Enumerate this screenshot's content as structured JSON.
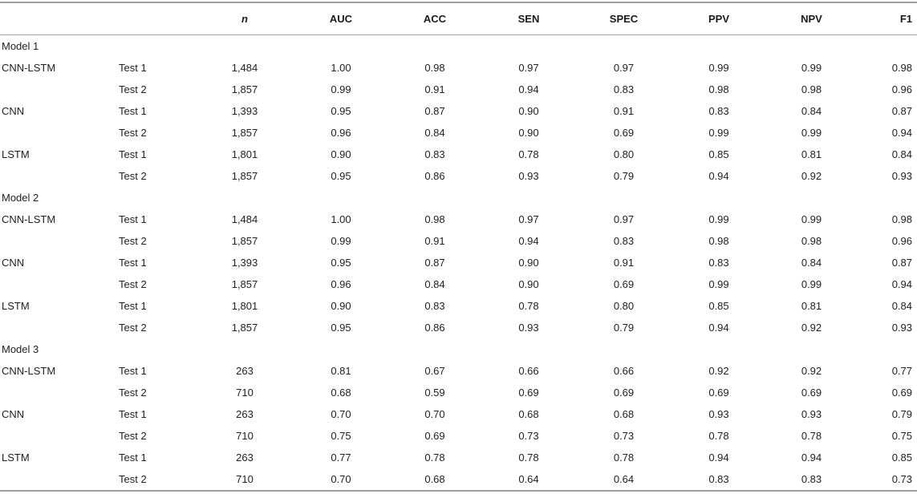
{
  "table": {
    "rule_color": "#9f9f9f",
    "text_color": "#212121",
    "columns": [
      "",
      "",
      "n",
      "AUC",
      "ACC",
      "SEN",
      "SPEC",
      "PPV",
      "NPV",
      "F1"
    ],
    "sections": [
      {
        "label": "Model 1",
        "rows": [
          [
            "CNN-LSTM",
            "Test 1",
            "1,484",
            "1.00",
            "0.98",
            "0.97",
            "0.97",
            "0.99",
            "0.99",
            "0.98"
          ],
          [
            "",
            "Test 2",
            "1,857",
            "0.99",
            "0.91",
            "0.94",
            "0.83",
            "0.98",
            "0.98",
            "0.96"
          ],
          [
            "CNN",
            "Test 1",
            "1,393",
            "0.95",
            "0.87",
            "0.90",
            "0.91",
            "0.83",
            "0.84",
            "0.87"
          ],
          [
            "",
            "Test 2",
            "1,857",
            "0.96",
            "0.84",
            "0.90",
            "0.69",
            "0.99",
            "0.99",
            "0.94"
          ],
          [
            "LSTM",
            "Test 1",
            "1,801",
            "0.90",
            "0.83",
            "0.78",
            "0.80",
            "0.85",
            "0.81",
            "0.84"
          ],
          [
            "",
            "Test 2",
            "1,857",
            "0.95",
            "0.86",
            "0.93",
            "0.79",
            "0.94",
            "0.92",
            "0.93"
          ]
        ]
      },
      {
        "label": "Model 2",
        "rows": [
          [
            "CNN-LSTM",
            "Test 1",
            "1,484",
            "1.00",
            "0.98",
            "0.97",
            "0.97",
            "0.99",
            "0.99",
            "0.98"
          ],
          [
            "",
            "Test 2",
            "1,857",
            "0.99",
            "0.91",
            "0.94",
            "0.83",
            "0.98",
            "0.98",
            "0.96"
          ],
          [
            "CNN",
            "Test 1",
            "1,393",
            "0.95",
            "0.87",
            "0.90",
            "0.91",
            "0.83",
            "0.84",
            "0.87"
          ],
          [
            "",
            "Test 2",
            "1,857",
            "0.96",
            "0.84",
            "0.90",
            "0.69",
            "0.99",
            "0.99",
            "0.94"
          ],
          [
            "LSTM",
            "Test 1",
            "1,801",
            "0.90",
            "0.83",
            "0.78",
            "0.80",
            "0.85",
            "0.81",
            "0.84"
          ],
          [
            "",
            "Test 2",
            "1,857",
            "0.95",
            "0.86",
            "0.93",
            "0.79",
            "0.94",
            "0.92",
            "0.93"
          ]
        ]
      },
      {
        "label": "Model 3",
        "rows": [
          [
            "CNN-LSTM",
            "Test 1",
            "263",
            "0.81",
            "0.67",
            "0.66",
            "0.66",
            "0.92",
            "0.92",
            "0.77"
          ],
          [
            "",
            "Test 2",
            "710",
            "0.68",
            "0.59",
            "0.69",
            "0.69",
            "0.69",
            "0.69",
            "0.69"
          ],
          [
            "CNN",
            "Test 1",
            "263",
            "0.70",
            "0.70",
            "0.68",
            "0.68",
            "0.93",
            "0.93",
            "0.79"
          ],
          [
            "",
            "Test 2",
            "710",
            "0.75",
            "0.69",
            "0.73",
            "0.73",
            "0.78",
            "0.78",
            "0.75"
          ],
          [
            "LSTM",
            "Test 1",
            "263",
            "0.77",
            "0.78",
            "0.78",
            "0.78",
            "0.94",
            "0.94",
            "0.85"
          ],
          [
            "",
            "Test 2",
            "710",
            "0.70",
            "0.68",
            "0.64",
            "0.64",
            "0.83",
            "0.83",
            "0.73"
          ]
        ]
      }
    ]
  }
}
